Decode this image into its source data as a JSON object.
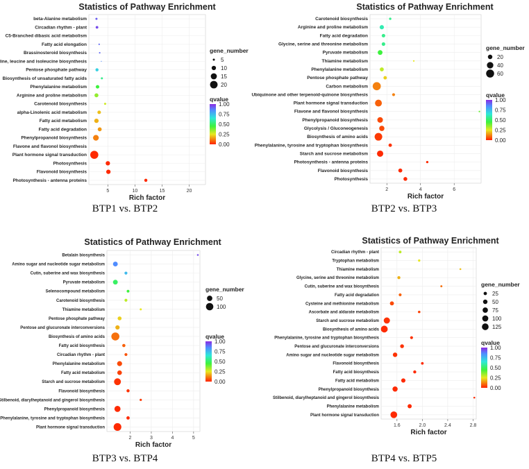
{
  "legend_common": {
    "gene_number_title": "gene_number",
    "qvalue_title": "qvalue",
    "qvalue_ticks": [
      "1.00",
      "0.75",
      "0.50",
      "0.25",
      "0.00"
    ],
    "colors": {
      "high": "#8a2be2",
      "upper": "#4f8cff",
      "mid": "#2ee8d8",
      "low_mid": "#3df23d",
      "yellow": "#e8e820",
      "low": "#ff2200"
    }
  },
  "chart_data": [
    {
      "type": "scatter",
      "title": "Statistics of Pathway Enrichment",
      "xlabel": "Rich factor",
      "caption": "BTP1 vs. BTP2",
      "xlim": [
        1.5,
        23
      ],
      "xticks": [
        {
          "v": 5,
          "label": "5"
        },
        {
          "v": 10,
          "label": "10"
        },
        {
          "v": 15,
          "label": "15"
        },
        {
          "v": 20,
          "label": "20"
        }
      ],
      "size_legend": [
        {
          "v": 5,
          "label": "5"
        },
        {
          "v": 10,
          "label": "10"
        },
        {
          "v": 15,
          "label": "15"
        },
        {
          "v": 20,
          "label": "20"
        }
      ],
      "size_range": [
        5,
        23
      ],
      "points": [
        {
          "pathway": "beta-Alanine metabolism",
          "x": 2.9,
          "genes": 5,
          "q": 0.92
        },
        {
          "pathway": "Circadian rhythm - plant",
          "x": 3.0,
          "genes": 6,
          "q": 0.95
        },
        {
          "pathway": "C5-Branched dibasic acid metabolism",
          "x": 3.3,
          "genes": 2,
          "q": 0.88
        },
        {
          "pathway": "Fatty acid elongation",
          "x": 3.4,
          "genes": 4,
          "q": 0.9
        },
        {
          "pathway": "Brassinosteroid biosynthesis",
          "x": 3.5,
          "genes": 4,
          "q": 0.9
        },
        {
          "pathway": "Valine, leucine and isoleucine biosynthesis",
          "x": 3.8,
          "genes": 3,
          "q": 0.85
        },
        {
          "pathway": "Pentose phosphate pathway",
          "x": 3.0,
          "genes": 7,
          "q": 0.7
        },
        {
          "pathway": "Biosynthesis of unsaturated fatty acids",
          "x": 3.9,
          "genes": 5,
          "q": 0.55
        },
        {
          "pathway": "Phenylalanine metabolism",
          "x": 3.1,
          "genes": 8,
          "q": 0.45
        },
        {
          "pathway": "Arginine and proline metabolism",
          "x": 2.9,
          "genes": 9,
          "q": 0.35
        },
        {
          "pathway": "Carotenoid biosynthesis",
          "x": 4.5,
          "genes": 5,
          "q": 0.28
        },
        {
          "pathway": "alpha-Linolenic acid metabolism",
          "x": 3.4,
          "genes": 8,
          "q": 0.2
        },
        {
          "pathway": "Fatty acid metabolism",
          "x": 2.9,
          "genes": 10,
          "q": 0.18
        },
        {
          "pathway": "Fatty acid degradation",
          "x": 3.5,
          "genes": 9,
          "q": 0.15
        },
        {
          "pathway": "Phenylpropanoid biosynthesis",
          "x": 2.8,
          "genes": 14,
          "q": 0.12
        },
        {
          "pathway": "Flavone and flavonol biosynthesis",
          "x": 22.0,
          "genes": 2,
          "q": 0.03
        },
        {
          "pathway": "Plant hormone signal transduction",
          "x": 2.5,
          "genes": 22,
          "q": 0.01
        },
        {
          "pathway": "Photosynthesis",
          "x": 5.0,
          "genes": 10,
          "q": 0.01
        },
        {
          "pathway": "Flavonoid biosynthesis",
          "x": 5.1,
          "genes": 10,
          "q": 0.01
        },
        {
          "pathway": "Photosynthesis - antenna proteins",
          "x": 12.0,
          "genes": 7,
          "q": 0.01
        }
      ]
    },
    {
      "type": "scatter",
      "title": "Statistics of Pathway Enrichment",
      "xlabel": "Rich factor",
      "caption": "BTP2 vs. BTP3",
      "xlim": [
        1.0,
        7.6
      ],
      "xticks": [
        {
          "v": 2,
          "label": "2"
        },
        {
          "v": 4,
          "label": "4"
        },
        {
          "v": 6,
          "label": "6"
        }
      ],
      "size_legend": [
        {
          "v": 20,
          "label": "20"
        },
        {
          "v": 40,
          "label": "40"
        },
        {
          "v": 60,
          "label": "60"
        }
      ],
      "size_range": [
        5,
        65
      ],
      "points": [
        {
          "pathway": "Carotenoid biosynthesis",
          "x": 2.2,
          "genes": 6,
          "q": 0.55
        },
        {
          "pathway": "Arginine and proline metabolism",
          "x": 1.7,
          "genes": 18,
          "q": 0.6
        },
        {
          "pathway": "Fatty acid degradation",
          "x": 1.8,
          "genes": 13,
          "q": 0.55
        },
        {
          "pathway": "Glycine, serine and threonine metabolism",
          "x": 1.8,
          "genes": 13,
          "q": 0.55
        },
        {
          "pathway": "Pyruvate metabolism",
          "x": 1.6,
          "genes": 22,
          "q": 0.45
        },
        {
          "pathway": "Thiamine metabolism",
          "x": 3.6,
          "genes": 3,
          "q": 0.25
        },
        {
          "pathway": "Phenylalanine metabolism",
          "x": 1.7,
          "genes": 16,
          "q": 0.3
        },
        {
          "pathway": "Pentose phosphate pathway",
          "x": 1.9,
          "genes": 12,
          "q": 0.22
        },
        {
          "pathway": "Carbon metabolism",
          "x": 1.4,
          "genes": 62,
          "q": 0.12
        },
        {
          "pathway": "Ubiquinone and other terpenoid-quinone biosynthesis",
          "x": 2.4,
          "genes": 9,
          "q": 0.12
        },
        {
          "pathway": "Plant hormone signal transduction",
          "x": 1.5,
          "genes": 45,
          "q": 0.08
        },
        {
          "pathway": "Flavone and flavonol biosynthesis",
          "x": 7.5,
          "genes": 3,
          "q": 0.4
        },
        {
          "pathway": "Phenylpropanoid biosynthesis",
          "x": 1.6,
          "genes": 30,
          "q": 0.05
        },
        {
          "pathway": "Glycolysis / Gluconeogenesis",
          "x": 1.7,
          "genes": 27,
          "q": 0.05
        },
        {
          "pathway": "Biosynthesis of amino acids",
          "x": 1.5,
          "genes": 55,
          "q": 0.03
        },
        {
          "pathway": "Phenylalanine, tyrosine and tryptophan biosynthesis",
          "x": 2.2,
          "genes": 12,
          "q": 0.02
        },
        {
          "pathway": "Starch and sucrose metabolism",
          "x": 1.6,
          "genes": 38,
          "q": 0.01
        },
        {
          "pathway": "Photosynthesis - antenna proteins",
          "x": 4.4,
          "genes": 6,
          "q": 0.01
        },
        {
          "pathway": "Flavonoid biosynthesis",
          "x": 2.8,
          "genes": 16,
          "q": 0.01
        },
        {
          "pathway": "Photosynthesis",
          "x": 3.1,
          "genes": 15,
          "q": 0.01
        }
      ]
    },
    {
      "type": "scatter",
      "title": "Statistics of Pathway Enrichment",
      "xlabel": "Rich factor",
      "caption": "BTP3 vs. BTP4",
      "xlim": [
        0.9,
        5.3
      ],
      "xticks": [
        {
          "v": 2,
          "label": "2"
        },
        {
          "v": 3,
          "label": "3"
        },
        {
          "v": 4,
          "label": "4"
        },
        {
          "v": 5,
          "label": "5"
        }
      ],
      "size_legend": [
        {
          "v": 50,
          "label": "50"
        },
        {
          "v": 100,
          "label": "100"
        }
      ],
      "size_range": [
        5,
        130
      ],
      "points": [
        {
          "pathway": "Betalain biosynthesis",
          "x": 5.2,
          "genes": 3,
          "q": 0.95
        },
        {
          "pathway": "Amino sugar and nucleotide sugar metabolism",
          "x": 1.3,
          "genes": 38,
          "q": 0.85
        },
        {
          "pathway": "Cutin, suberine and wax biosynthesis",
          "x": 1.8,
          "genes": 12,
          "q": 0.75
        },
        {
          "pathway": "Pyruvate metabolism",
          "x": 1.3,
          "genes": 38,
          "q": 0.5
        },
        {
          "pathway": "Selenocompound metabolism",
          "x": 1.9,
          "genes": 10,
          "q": 0.45
        },
        {
          "pathway": "Carotenoid biosynthesis",
          "x": 1.8,
          "genes": 12,
          "q": 0.3
        },
        {
          "pathway": "Thiamine metabolism",
          "x": 2.5,
          "genes": 5,
          "q": 0.25
        },
        {
          "pathway": "Pentose phosphate pathway",
          "x": 1.5,
          "genes": 24,
          "q": 0.22
        },
        {
          "pathway": "Pentose and glucuronate interconversions",
          "x": 1.4,
          "genes": 30,
          "q": 0.18
        },
        {
          "pathway": "Biosynthesis of amino acids",
          "x": 1.3,
          "genes": 120,
          "q": 0.1
        },
        {
          "pathway": "Fatty acid biosynthesis",
          "x": 1.7,
          "genes": 15,
          "q": 0.08
        },
        {
          "pathway": "Circadian rhythm - plant",
          "x": 1.8,
          "genes": 12,
          "q": 0.06
        },
        {
          "pathway": "Phenylalanine metabolism",
          "x": 1.5,
          "genes": 42,
          "q": 0.05
        },
        {
          "pathway": "Fatty acid metabolism",
          "x": 1.5,
          "genes": 35,
          "q": 0.04
        },
        {
          "pathway": "Starch and sucrose metabolism",
          "x": 1.4,
          "genes": 85,
          "q": 0.02
        },
        {
          "pathway": "Flavonoid biosynthesis",
          "x": 1.9,
          "genes": 14,
          "q": 0.02
        },
        {
          "pathway": "Stilbenoid, diarylheptanoid and gingerol biosynthesis",
          "x": 2.5,
          "genes": 6,
          "q": 0.03
        },
        {
          "pathway": "Phenylpropanoid biosynthesis",
          "x": 1.4,
          "genes": 65,
          "q": 0.01
        },
        {
          "pathway": "Phenylalanine, tyrosine and tryptophan biosynthesis",
          "x": 1.9,
          "genes": 16,
          "q": 0.01
        },
        {
          "pathway": "Plant hormone signal transduction",
          "x": 1.4,
          "genes": 110,
          "q": 0.01
        }
      ]
    },
    {
      "type": "scatter",
      "title": "Statistics of Pathway Enrichment",
      "xlabel": "Rich factor",
      "caption": "BTP4 vs. BTP5",
      "xlim": [
        1.35,
        2.85
      ],
      "xticks": [
        {
          "v": 1.6,
          "label": "1.6"
        },
        {
          "v": 2.0,
          "label": "2.0"
        },
        {
          "v": 2.4,
          "label": "2.4"
        },
        {
          "v": 2.8,
          "label": "2.8"
        }
      ],
      "size_legend": [
        {
          "v": 25,
          "label": "25"
        },
        {
          "v": 50,
          "label": "50"
        },
        {
          "v": 75,
          "label": "75"
        },
        {
          "v": 100,
          "label": "100"
        },
        {
          "v": 125,
          "label": "125"
        }
      ],
      "size_range": [
        5,
        135
      ],
      "points": [
        {
          "pathway": "Circadian rhythm - plant",
          "x": 1.65,
          "genes": 15,
          "q": 0.3
        },
        {
          "pathway": "Tryptophan metabolism",
          "x": 1.95,
          "genes": 10,
          "q": 0.25
        },
        {
          "pathway": "Thiamine metabolism",
          "x": 2.6,
          "genes": 5,
          "q": 0.2
        },
        {
          "pathway": "Glycine, serine and threonine metabolism",
          "x": 1.63,
          "genes": 20,
          "q": 0.18
        },
        {
          "pathway": "Cutin, suberine and wax biosynthesis",
          "x": 2.3,
          "genes": 7,
          "q": 0.1
        },
        {
          "pathway": "Fatty acid degradation",
          "x": 1.65,
          "genes": 18,
          "q": 0.08
        },
        {
          "pathway": "Cysteine and methionine metabolism",
          "x": 1.52,
          "genes": 40,
          "q": 0.05
        },
        {
          "pathway": "Ascorbate and aldarate metabolism",
          "x": 1.95,
          "genes": 12,
          "q": 0.04
        },
        {
          "pathway": "Starch and sucrose metabolism",
          "x": 1.44,
          "genes": 105,
          "q": 0.02
        },
        {
          "pathway": "Biosynthesis of amino acids",
          "x": 1.4,
          "genes": 130,
          "q": 0.01
        },
        {
          "pathway": "Phenylalanine, tyrosine and tryptophan biosynthesis",
          "x": 1.83,
          "genes": 18,
          "q": 0.02
        },
        {
          "pathway": "Pentose and glucuronate interconversions",
          "x": 1.68,
          "genes": 35,
          "q": 0.02
        },
        {
          "pathway": "Amino sugar and nucleotide sugar metabolism",
          "x": 1.57,
          "genes": 50,
          "q": 0.02
        },
        {
          "pathway": "Flavonoid biosynthesis",
          "x": 2.0,
          "genes": 14,
          "q": 0.01
        },
        {
          "pathway": "Fatty acid biosynthesis",
          "x": 1.88,
          "genes": 20,
          "q": 0.01
        },
        {
          "pathway": "Fatty acid metabolism",
          "x": 1.7,
          "genes": 45,
          "q": 0.01
        },
        {
          "pathway": "Phenylpropanoid biosynthesis",
          "x": 1.57,
          "genes": 70,
          "q": 0.01
        },
        {
          "pathway": "Stilbenoid, diarylheptanoid and gingerol biosynthesis",
          "x": 2.82,
          "genes": 5,
          "q": 0.01
        },
        {
          "pathway": "Phenylalanine metabolism",
          "x": 1.8,
          "genes": 42,
          "q": 0.01
        },
        {
          "pathway": "Plant hormone signal transduction",
          "x": 1.55,
          "genes": 125,
          "q": 0.01
        }
      ]
    }
  ]
}
